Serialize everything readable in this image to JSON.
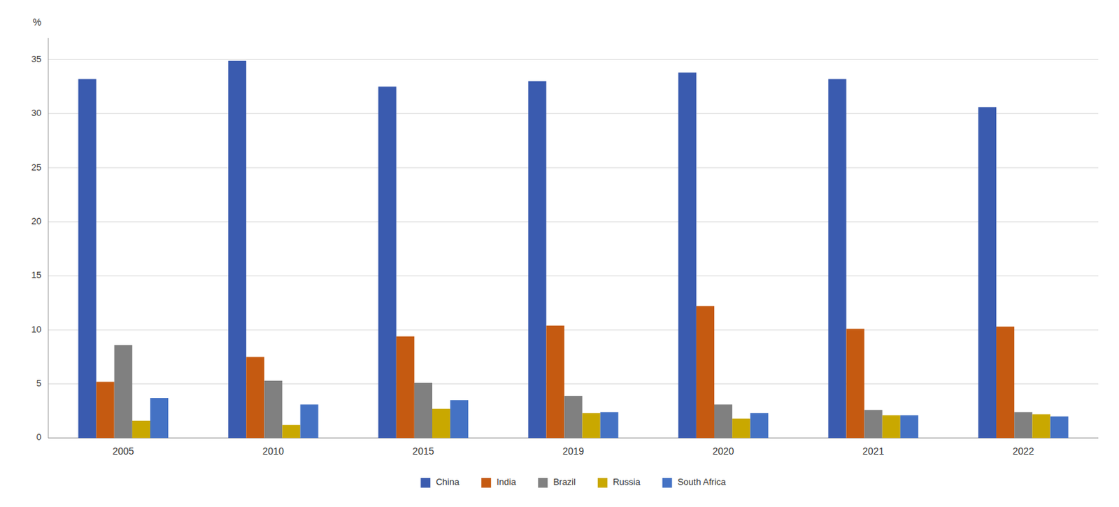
{
  "chart_data": {
    "type": "bar",
    "ylabel": "%",
    "categories": [
      "2005",
      "2010",
      "2015",
      "2019",
      "2020",
      "2021",
      "2022"
    ],
    "series": [
      {
        "name": "China",
        "color": "#3a5baf",
        "values": [
          33.2,
          34.9,
          32.5,
          33.0,
          33.8,
          33.2,
          30.6
        ]
      },
      {
        "name": "India",
        "color": "#c55a11",
        "values": [
          5.2,
          7.5,
          9.4,
          10.4,
          12.2,
          10.1,
          10.3
        ]
      },
      {
        "name": "Brazil",
        "color": "#808080",
        "values": [
          8.6,
          5.3,
          5.1,
          3.9,
          3.1,
          2.6,
          2.4
        ]
      },
      {
        "name": "Russia",
        "color": "#c9a800",
        "values": [
          1.6,
          1.2,
          2.7,
          2.3,
          1.8,
          2.1,
          2.2
        ]
      },
      {
        "name": "South Africa",
        "color": "#4472c4",
        "values": [
          3.7,
          3.1,
          3.5,
          2.4,
          2.3,
          2.1,
          2.0
        ]
      }
    ],
    "ylim": [
      0,
      37
    ],
    "yticks": [
      0,
      5,
      10,
      15,
      20,
      25,
      30,
      35
    ],
    "grid": true,
    "legend": "bottom"
  }
}
